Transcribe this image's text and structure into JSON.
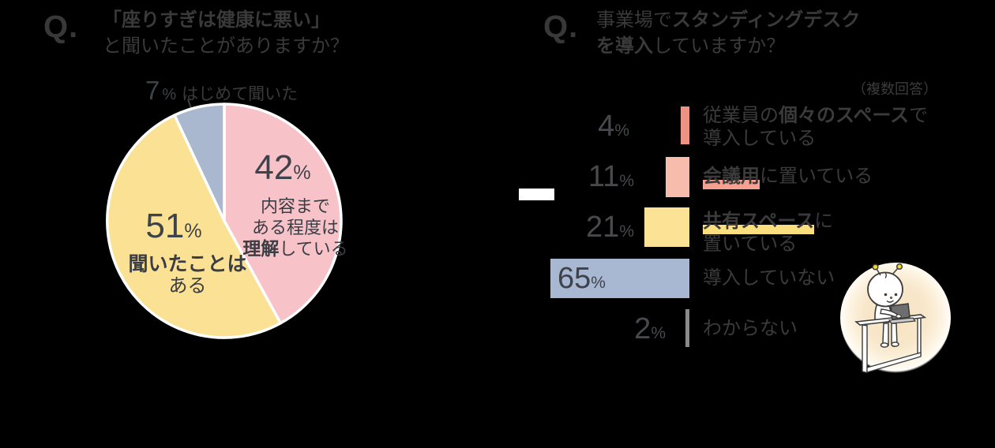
{
  "left_section": {
    "q": "Q.",
    "title_bold": "「座りすぎは健康に悪い」",
    "title_rest": "と聞いたことがありますか？",
    "callout": {
      "value": "7",
      "unit": "%",
      "label": "はじめて聞いた"
    },
    "slice_pink": {
      "value": "42",
      "unit": "%",
      "line1": "内容まで",
      "line2": "ある程度は",
      "line3_bold": "理解",
      "line3_rest": "している"
    },
    "slice_yellow": {
      "value": "51",
      "unit": "%",
      "line1_bold": "聞いたことは",
      "line2": "ある"
    }
  },
  "right_section": {
    "q": "Q.",
    "title1_pre": "事業場で",
    "title1_bold": "スタンディングデスク",
    "title2_bold": "を導入",
    "title2_rest": "していますか？",
    "note": "（複数回答）",
    "rows": [
      {
        "value": "4",
        "unit": "%",
        "label1_pre": "従業員の",
        "label1_bold": "個々のスペース",
        "label1_post": "で",
        "label2": "導入している"
      },
      {
        "value": "11",
        "unit": "%",
        "label1_bold": "会議用",
        "label1_post": "に置いている"
      },
      {
        "value": "21",
        "unit": "%",
        "label1_bold": "共有スペース",
        "label1_post": "に",
        "label2": "置いている"
      },
      {
        "value": "65",
        "unit": "%",
        "label1": "導入していない"
      },
      {
        "value": "2",
        "unit": "%",
        "label1": "わからない"
      }
    ]
  },
  "colors": {
    "background": "#000000",
    "text_dark": "#3a3a3a",
    "number_dark": "#3E424B",
    "pie_pink": "#F8C3C8",
    "pie_yellow": "#FBE193",
    "pie_blue": "#A9B7CF",
    "highlight_salmon": "#F5A090",
    "highlight_yellow": "#FBDE7D",
    "slice_border": "#FFFFFF",
    "antenna_yellow": "#F0DC28"
  },
  "chart_data": [
    {
      "type": "pie",
      "title": "「座りすぎは健康に悪い」と聞いたことがありますか？",
      "labels": [
        "内容まである程度は理解している",
        "聞いたことはある",
        "はじめて聞いた"
      ],
      "values": [
        42,
        51,
        7
      ],
      "colors": [
        "#F8C3C8",
        "#FBE193",
        "#A9B7CF"
      ],
      "start_angle": "12-o'clock",
      "direction": "clockwise",
      "legend_position": "inside-slices"
    },
    {
      "type": "bar",
      "title": "事業場でスタンディングデスクを導入していますか？",
      "subtitle": "（複数回答）",
      "categories": [
        "従業員の個々のスペースで導入している",
        "会議用に置いている",
        "共有スペースに置いている",
        "導入していない",
        "わからない"
      ],
      "values": [
        4,
        11,
        21,
        65,
        2
      ],
      "colors": [
        "#ED9383",
        "#F8BCAD",
        "#FCE295",
        "#A9B8D2",
        "#8B8B8B"
      ],
      "orientation": "horizontal",
      "bars_aligned": "right-edge",
      "xlim": [
        0,
        65
      ],
      "grid": false
    }
  ]
}
